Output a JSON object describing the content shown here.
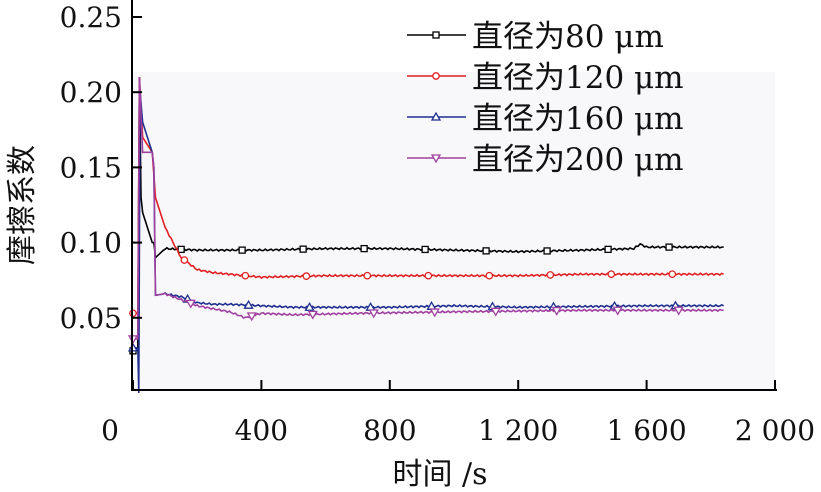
{
  "chart_data": {
    "type": "line",
    "xlabel": "时间 /s",
    "ylabel": "摩擦系数",
    "xlim": [
      0,
      2000
    ],
    "ylim": [
      0,
      0.25
    ],
    "xticks": [
      0,
      400,
      800,
      1200,
      1600,
      2000
    ],
    "xtick_labels": [
      "0",
      "400",
      "800",
      "1 200",
      "1 600",
      "2 000"
    ],
    "yticks": [
      0.05,
      0.1,
      0.15,
      0.2,
      0.25
    ],
    "ytick_labels": [
      "0.05",
      "0.10",
      "0.15",
      "0.20",
      "0.25"
    ],
    "legend_position": "top-right",
    "series": [
      {
        "name": "直径为80 μm",
        "color": "#000000",
        "marker": "square",
        "x": [
          0,
          15,
          20,
          25,
          30,
          45,
          60,
          65,
          70,
          100,
          200,
          400,
          600,
          800,
          1000,
          1200,
          1400,
          1560,
          1580,
          1600,
          1840
        ],
        "y": [
          0.028,
          0.03,
          0.21,
          0.13,
          0.12,
          0.11,
          0.1,
          0.1,
          0.09,
          0.096,
          0.095,
          0.095,
          0.096,
          0.096,
          0.095,
          0.094,
          0.095,
          0.096,
          0.099,
          0.097,
          0.097
        ]
      },
      {
        "name": "直径为120 μm",
        "color": "#e02020",
        "marker": "circle",
        "x": [
          0,
          15,
          20,
          30,
          60,
          70,
          100,
          150,
          200,
          250,
          400,
          600,
          800,
          1000,
          1200,
          1400,
          1600,
          1840
        ],
        "y": [
          0.053,
          0.053,
          0.21,
          0.17,
          0.16,
          0.13,
          0.11,
          0.09,
          0.082,
          0.08,
          0.077,
          0.078,
          0.078,
          0.078,
          0.078,
          0.079,
          0.079,
          0.079
        ]
      },
      {
        "name": "直径为160 μm",
        "color": "#1f2f8f",
        "marker": "triangle-up",
        "x": [
          0,
          15,
          18,
          22,
          30,
          60,
          65,
          70,
          100,
          150,
          200,
          250,
          300,
          500,
          800,
          1000,
          1200,
          1600,
          1840
        ],
        "y": [
          0.03,
          0.03,
          0.0,
          0.2,
          0.18,
          0.16,
          0.15,
          0.065,
          0.066,
          0.064,
          0.06,
          0.059,
          0.059,
          0.057,
          0.057,
          0.058,
          0.057,
          0.058,
          0.058
        ]
      },
      {
        "name": "直径为200 μm",
        "color": "#a040a0",
        "marker": "triangle-down",
        "x": [
          0,
          15,
          20,
          30,
          60,
          65,
          70,
          100,
          150,
          200,
          250,
          300,
          350,
          400,
          500,
          700,
          1000,
          1400,
          1840
        ],
        "y": [
          0.036,
          0.036,
          0.21,
          0.16,
          0.16,
          0.15,
          0.065,
          0.066,
          0.062,
          0.058,
          0.056,
          0.054,
          0.05,
          0.053,
          0.052,
          0.053,
          0.054,
          0.055,
          0.055
        ]
      }
    ]
  }
}
